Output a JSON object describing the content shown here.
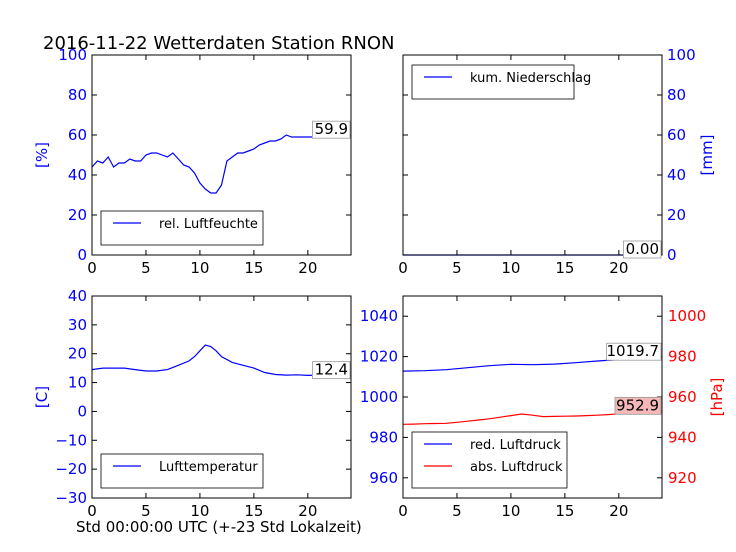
{
  "title": "2016-11-22 Wetterdaten Station RNON",
  "xlabel": "Std 00:00:00 UTC (+-23 Std Lokalzeit)",
  "colors": {
    "blue": "#0000ff",
    "red": "#ff0000",
    "last_value_box": "#ffffff",
    "last_value_box_red": "#f4b8b8"
  },
  "chart_data": [
    {
      "id": "humidity",
      "type": "line",
      "ylabel": "[%]",
      "xlim": [
        0,
        24
      ],
      "ylim": [
        0,
        100
      ],
      "xticks": [
        "0",
        "5",
        "10",
        "15",
        "20"
      ],
      "yticks": [
        "0",
        "20",
        "40",
        "60",
        "80",
        "100"
      ],
      "legend": "lower-left",
      "last_value": "59.9",
      "series": [
        {
          "name": "rel. Luftfeuchte",
          "color": "#0000ff",
          "x": [
            0,
            0.5,
            1,
            1.5,
            2,
            2.5,
            3,
            3.5,
            4,
            4.5,
            5,
            5.5,
            6,
            6.5,
            7,
            7.5,
            8,
            8.5,
            9,
            9.5,
            10,
            10.5,
            11,
            11.5,
            12,
            12.5,
            13,
            13.5,
            14,
            14.5,
            15,
            15.5,
            16,
            16.5,
            17,
            17.5,
            18,
            18.5,
            19,
            19.5,
            20,
            20.5,
            21,
            21.5,
            22,
            22.5,
            23,
            23.5,
            24
          ],
          "y": [
            44,
            47,
            46,
            49,
            44,
            46,
            46,
            48,
            47,
            47,
            50,
            51,
            51,
            50,
            49,
            51,
            48,
            45,
            44,
            41,
            36,
            33,
            31,
            31,
            35,
            47,
            49,
            51,
            51,
            52,
            53,
            55,
            56,
            57,
            57,
            58,
            60,
            59,
            59,
            59,
            59,
            59,
            59,
            60,
            59,
            59,
            59,
            60,
            59.9
          ]
        }
      ]
    },
    {
      "id": "precipitation",
      "type": "line",
      "ylabel": "[mm]",
      "xlim": [
        0,
        24
      ],
      "ylim": [
        0,
        100
      ],
      "xticks": [
        "0",
        "5",
        "10",
        "15",
        "20"
      ],
      "yticks": [
        "0",
        "20",
        "40",
        "60",
        "80",
        "100"
      ],
      "legend": "top-left",
      "last_value": "0.00",
      "series": [
        {
          "name": "kum. Niederschlag",
          "color": "#0000ff",
          "x": [
            0,
            24
          ],
          "y": [
            0,
            0
          ]
        }
      ]
    },
    {
      "id": "temperature",
      "type": "line",
      "ylabel": "[C]",
      "xlim": [
        0,
        24
      ],
      "ylim": [
        -30,
        40
      ],
      "xticks": [
        "0",
        "5",
        "10",
        "15",
        "20"
      ],
      "yticks": [
        "−30",
        "−20",
        "−10",
        "0",
        "10",
        "20",
        "30",
        "40"
      ],
      "legend": "lower-left",
      "last_value": "12.4",
      "series": [
        {
          "name": "Lufttemperatur",
          "color": "#0000ff",
          "x": [
            0,
            1,
            2,
            3,
            4,
            5,
            6,
            7,
            8,
            9,
            9.5,
            10,
            10.5,
            11,
            11.5,
            12,
            13,
            14,
            15,
            16,
            17,
            18,
            19,
            20,
            21,
            22,
            23,
            24
          ],
          "y": [
            14.5,
            15,
            15,
            15,
            14.5,
            14,
            14,
            14.5,
            16,
            17.5,
            19,
            21,
            23,
            22.5,
            21,
            19,
            17,
            16,
            15,
            13.5,
            12.8,
            12.6,
            12.7,
            12.5,
            12.6,
            12.5,
            12.6,
            12.4
          ]
        }
      ]
    },
    {
      "id": "pressure",
      "type": "line",
      "ylabel_right": "[hPa]",
      "xlim": [
        0,
        24
      ],
      "ylim": [
        950,
        1050
      ],
      "ylim_right": [
        910,
        1010
      ],
      "xticks": [
        "0",
        "5",
        "10",
        "15",
        "20"
      ],
      "yticks": [
        "960",
        "980",
        "1000",
        "1020",
        "1040"
      ],
      "yticks_right": [
        "920",
        "940",
        "960",
        "980",
        "1000"
      ],
      "legend": "lower-left",
      "last_value_1": "1019.7",
      "last_value_2": "952.9",
      "series": [
        {
          "name": "red. Luftdruck",
          "color": "#0000ff",
          "axis": "left",
          "x": [
            0,
            2,
            4,
            6,
            8,
            10,
            12,
            14,
            16,
            18,
            20,
            22,
            24
          ],
          "y": [
            1012.8,
            1013,
            1013.5,
            1014.5,
            1015.5,
            1016.2,
            1016,
            1016.3,
            1017,
            1017.8,
            1018.5,
            1019,
            1019.7
          ]
        },
        {
          "name": "abs. Luftdruck",
          "color": "#ff0000",
          "axis": "right",
          "x": [
            0,
            1,
            2,
            3,
            4,
            5,
            6,
            7,
            8,
            9,
            10,
            11,
            12,
            13,
            14,
            15,
            16,
            17,
            18,
            19,
            20,
            21,
            22,
            23,
            24
          ],
          "y": [
            946.5,
            946.6,
            946.8,
            946.9,
            947,
            947.5,
            948,
            948.6,
            949.2,
            950,
            950.8,
            951.6,
            951,
            950.3,
            950.4,
            950.5,
            950.6,
            950.8,
            951,
            951.3,
            951.7,
            952,
            952.3,
            952.6,
            952.9
          ]
        }
      ]
    }
  ]
}
